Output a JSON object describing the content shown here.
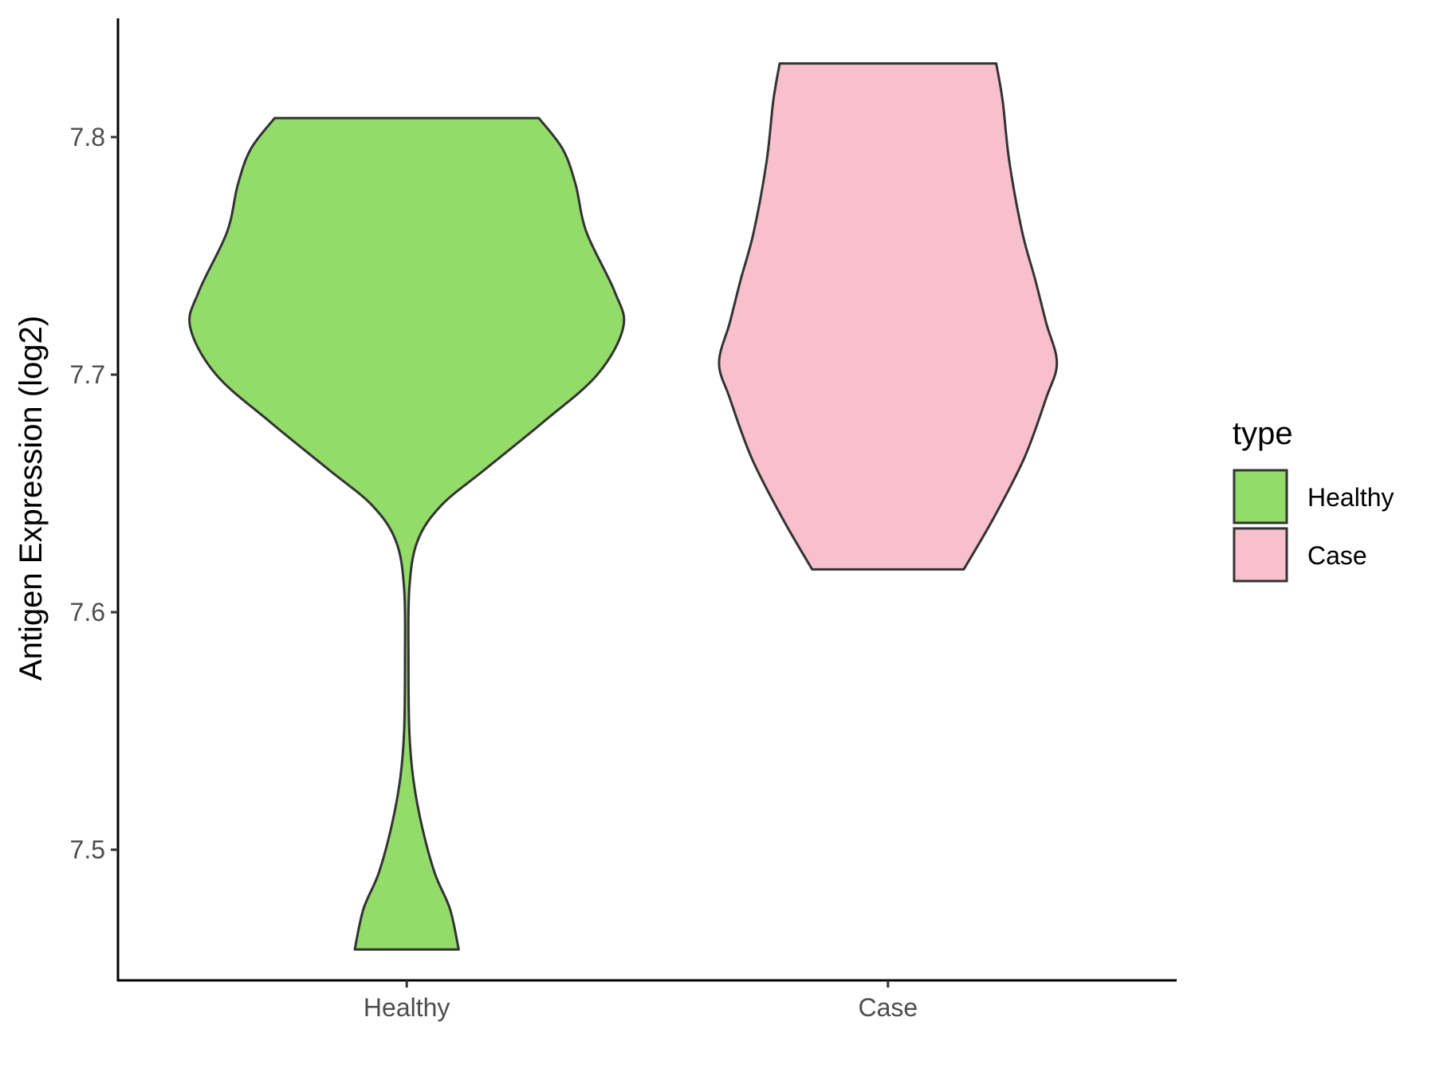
{
  "chart_data": {
    "type": "violin",
    "title": "",
    "xlabel": "",
    "ylabel": "Antigen Expression (log2)",
    "ylim": [
      7.445,
      7.85
    ],
    "y_ticks": [
      7.5,
      7.6,
      7.7,
      7.8
    ],
    "y_tick_labels": [
      "7.5",
      "7.6",
      "7.7",
      "7.8"
    ],
    "categories": [
      "Healthy",
      "Case"
    ],
    "grid": false,
    "legend": {
      "title": "type",
      "position": "right",
      "entries": [
        {
          "label": "Healthy",
          "color": "#93dc6a"
        },
        {
          "label": "Case",
          "color": "#f7c0cc"
        }
      ]
    },
    "series": [
      {
        "name": "Healthy",
        "color": "#93dc6a",
        "min": 7.458,
        "max": 7.808,
        "density_profile": [
          {
            "y": 7.458,
            "w": 0.24
          },
          {
            "y": 7.475,
            "w": 0.2
          },
          {
            "y": 7.49,
            "w": 0.13
          },
          {
            "y": 7.51,
            "w": 0.07
          },
          {
            "y": 7.53,
            "w": 0.03
          },
          {
            "y": 7.55,
            "w": 0.012
          },
          {
            "y": 7.58,
            "w": 0.008
          },
          {
            "y": 7.61,
            "w": 0.012
          },
          {
            "y": 7.63,
            "w": 0.05
          },
          {
            "y": 7.645,
            "w": 0.16
          },
          {
            "y": 7.66,
            "w": 0.36
          },
          {
            "y": 7.68,
            "w": 0.63
          },
          {
            "y": 7.7,
            "w": 0.88
          },
          {
            "y": 7.72,
            "w": 1.0
          },
          {
            "y": 7.735,
            "w": 0.96
          },
          {
            "y": 7.76,
            "w": 0.83
          },
          {
            "y": 7.78,
            "w": 0.78
          },
          {
            "y": 7.795,
            "w": 0.72
          },
          {
            "y": 7.808,
            "w": 0.61
          }
        ]
      },
      {
        "name": "Case",
        "color": "#f7c0cc",
        "min": 7.618,
        "max": 7.831,
        "density_profile": [
          {
            "y": 7.618,
            "w": 0.35
          },
          {
            "y": 7.64,
            "w": 0.49
          },
          {
            "y": 7.665,
            "w": 0.63
          },
          {
            "y": 7.69,
            "w": 0.73
          },
          {
            "y": 7.705,
            "w": 0.78
          },
          {
            "y": 7.722,
            "w": 0.73
          },
          {
            "y": 7.74,
            "w": 0.68
          },
          {
            "y": 7.76,
            "w": 0.62
          },
          {
            "y": 7.79,
            "w": 0.56
          },
          {
            "y": 7.815,
            "w": 0.53
          },
          {
            "y": 7.831,
            "w": 0.5
          }
        ]
      }
    ]
  }
}
